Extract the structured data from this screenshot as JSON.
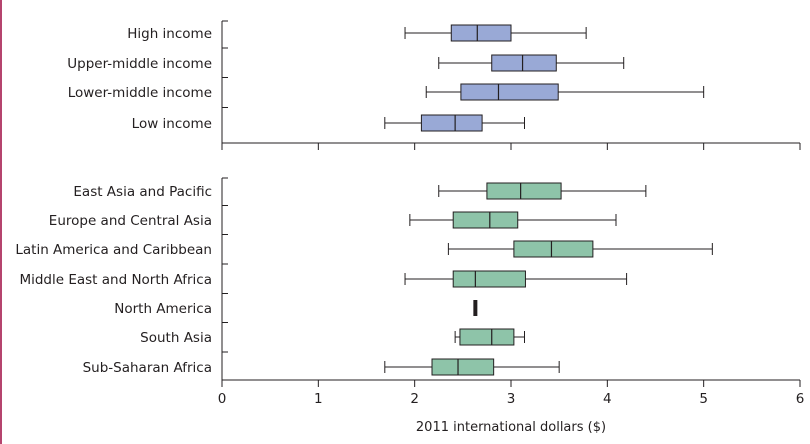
{
  "colors": {
    "income_fill": "#99a9d6",
    "region_fill": "#8ec4a9",
    "stroke": "#231f20",
    "frame_accent": "#b5446e"
  },
  "chart_data": [
    {
      "type": "boxplot",
      "panel": "income",
      "xlabel": "",
      "xlim": [
        0,
        6
      ],
      "categories": [
        "High income",
        "Upper-middle income",
        "Lower-middle income",
        "Low income"
      ],
      "series": [
        {
          "label": "High income",
          "whisker_low": 1.9,
          "q1": 2.38,
          "median": 2.65,
          "q3": 3.0,
          "whisker_high": 3.78
        },
        {
          "label": "Upper-middle income",
          "whisker_low": 2.25,
          "q1": 2.8,
          "median": 3.12,
          "q3": 3.47,
          "whisker_high": 4.17
        },
        {
          "label": "Lower-middle income",
          "whisker_low": 2.12,
          "q1": 2.48,
          "median": 2.87,
          "q3": 3.49,
          "whisker_high": 5.0
        },
        {
          "label": "Low income",
          "whisker_low": 1.69,
          "q1": 2.07,
          "median": 2.42,
          "q3": 2.7,
          "whisker_high": 3.14
        }
      ]
    },
    {
      "type": "boxplot",
      "panel": "region",
      "xlabel": "2011 international dollars ($)",
      "xlim": [
        0,
        6
      ],
      "xticks": [
        "0",
        "1",
        "2",
        "3",
        "4",
        "5",
        "6"
      ],
      "categories": [
        "East Asia and Pacific",
        "Europe and Central Asia",
        "Latin America and Caribbean",
        "Middle East and North Africa",
        "North America",
        "South Asia",
        "Sub-Saharan Africa"
      ],
      "series": [
        {
          "label": "East Asia and Pacific",
          "whisker_low": 2.25,
          "q1": 2.75,
          "median": 3.1,
          "q3": 3.52,
          "whisker_high": 4.4
        },
        {
          "label": "Europe and Central Asia",
          "whisker_low": 1.95,
          "q1": 2.4,
          "median": 2.78,
          "q3": 3.07,
          "whisker_high": 4.09
        },
        {
          "label": "Latin America and Caribbean",
          "whisker_low": 2.35,
          "q1": 3.03,
          "median": 3.42,
          "q3": 3.85,
          "whisker_high": 5.09
        },
        {
          "label": "Middle East and North Africa",
          "whisker_low": 1.9,
          "q1": 2.4,
          "median": 2.63,
          "q3": 3.15,
          "whisker_high": 4.2
        },
        {
          "label": "North America",
          "whisker_low": 2.63,
          "q1": 2.63,
          "median": 2.63,
          "q3": 2.63,
          "whisker_high": 2.63
        },
        {
          "label": "South Asia",
          "whisker_low": 2.42,
          "q1": 2.47,
          "median": 2.8,
          "q3": 3.03,
          "whisker_high": 3.14
        },
        {
          "label": "Sub-Saharan Africa",
          "whisker_low": 1.69,
          "q1": 2.18,
          "median": 2.45,
          "q3": 2.82,
          "whisker_high": 3.5
        }
      ]
    }
  ]
}
